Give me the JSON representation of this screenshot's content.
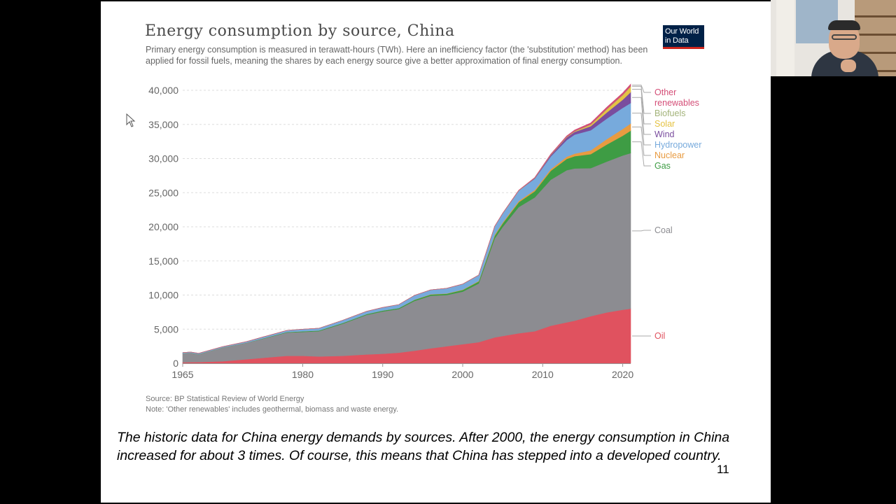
{
  "slide": {
    "caption": "The historic data for China energy demands by sources. After 2000, the energy consumption in China increased for about 3 times. Of course, this means that China has stepped into a developed country.",
    "page_number": "11"
  },
  "logo": {
    "line1": "Our World",
    "line2": "in Data"
  },
  "source": {
    "line1": "Source: BP Statistical Review of World Energy",
    "line2": "Note: 'Other renewables' includes geothermal, biomass and waste energy."
  },
  "chart_data": {
    "type": "area",
    "stacked": true,
    "title": "Energy consumption by source, China",
    "subtitle": "Primary energy consumption is measured in terawatt-hours (TWh). Here an inefficiency factor (the 'substitution' method) has been applied for fossil fuels, meaning the shares by each energy source give a better approximation of final energy consumption.",
    "xlabel": "",
    "ylabel": "",
    "xlim": [
      1965,
      2021
    ],
    "ylim": [
      0,
      40000
    ],
    "y_ticks": [
      0,
      5000,
      10000,
      15000,
      20000,
      25000,
      30000,
      35000,
      40000
    ],
    "y_tick_labels": [
      "0",
      "5,000",
      "10,000",
      "15,000",
      "20,000",
      "25,000",
      "30,000",
      "35,000",
      "40,000"
    ],
    "x_ticks": [
      1965,
      1980,
      1990,
      2000,
      2010,
      2020
    ],
    "x_tick_labels": [
      "1965",
      "1980",
      "1990",
      "2000",
      "2010",
      "2020"
    ],
    "grid": "horizontal dotted",
    "legend_position": "right, inline labels at series ends",
    "x": [
      1965,
      1966,
      1967,
      1970,
      1973,
      1975,
      1978,
      1980,
      1982,
      1985,
      1988,
      1990,
      1992,
      1994,
      1996,
      1998,
      2000,
      2002,
      2004,
      2005,
      2007,
      2009,
      2011,
      2013,
      2014,
      2016,
      2018,
      2020,
      2021
    ],
    "series": [
      {
        "name": "Oil",
        "color": "#e0525f",
        "values": [
          150,
          170,
          180,
          300,
          600,
          800,
          1100,
          1100,
          1000,
          1100,
          1300,
          1400,
          1550,
          1850,
          2200,
          2500,
          2800,
          3100,
          3800,
          4000,
          4400,
          4700,
          5500,
          6000,
          6250,
          6900,
          7450,
          7850,
          8000
        ]
      },
      {
        "name": "Coal",
        "color": "#8c8c91",
        "values": [
          1300,
          1350,
          1150,
          2000,
          2400,
          2800,
          3400,
          3500,
          3700,
          4700,
          5800,
          6200,
          6400,
          7300,
          7700,
          7500,
          7700,
          8600,
          14500,
          16000,
          18500,
          19600,
          21400,
          22300,
          22300,
          21700,
          22100,
          22600,
          22800
        ]
      },
      {
        "name": "Gas",
        "color": "#3e9c44",
        "values": [
          20,
          20,
          20,
          20,
          30,
          50,
          80,
          100,
          100,
          110,
          120,
          140,
          150,
          170,
          180,
          200,
          250,
          300,
          400,
          500,
          700,
          900,
          1300,
          1650,
          1800,
          2050,
          2500,
          2900,
          3300
        ]
      },
      {
        "name": "Nuclear",
        "color": "#e89b41",
        "values": [
          0,
          0,
          0,
          0,
          0,
          0,
          0,
          0,
          0,
          0,
          0,
          0,
          0,
          30,
          40,
          40,
          50,
          70,
          150,
          150,
          180,
          200,
          250,
          320,
          370,
          550,
          790,
          980,
          1050
        ]
      },
      {
        "name": "Hydropower",
        "color": "#77aadc",
        "values": [
          100,
          110,
          115,
          120,
          160,
          200,
          230,
          290,
          330,
          400,
          400,
          450,
          500,
          620,
          640,
          750,
          810,
          850,
          1200,
          1300,
          1500,
          1650,
          1850,
          2450,
          2800,
          2950,
          3000,
          3100,
          3000
        ]
      },
      {
        "name": "Wind",
        "color": "#7a4d9e",
        "values": [
          0,
          0,
          0,
          0,
          0,
          0,
          0,
          0,
          0,
          0,
          0,
          0,
          0,
          0,
          0,
          0,
          0,
          0,
          0,
          0,
          10,
          80,
          200,
          380,
          400,
          600,
          900,
          1200,
          1600
        ]
      },
      {
        "name": "Solar",
        "color": "#e5c343",
        "values": [
          0,
          0,
          0,
          0,
          0,
          0,
          0,
          0,
          0,
          0,
          0,
          0,
          0,
          0,
          0,
          0,
          0,
          0,
          0,
          0,
          0,
          0,
          10,
          40,
          60,
          200,
          450,
          650,
          800
        ]
      },
      {
        "name": "Biofuels",
        "color": "#a3b37a",
        "values": [
          0,
          0,
          0,
          0,
          0,
          0,
          0,
          0,
          0,
          0,
          0,
          0,
          0,
          0,
          0,
          0,
          5,
          10,
          30,
          40,
          40,
          40,
          50,
          50,
          50,
          50,
          60,
          60,
          60
        ]
      },
      {
        "name": "Other renewables",
        "color": "#d44e77",
        "values": [
          0,
          0,
          0,
          0,
          0,
          0,
          0,
          0,
          0,
          0,
          0,
          0,
          0,
          0,
          0,
          0,
          5,
          10,
          20,
          20,
          30,
          50,
          90,
          130,
          160,
          220,
          260,
          280,
          300
        ]
      }
    ]
  }
}
